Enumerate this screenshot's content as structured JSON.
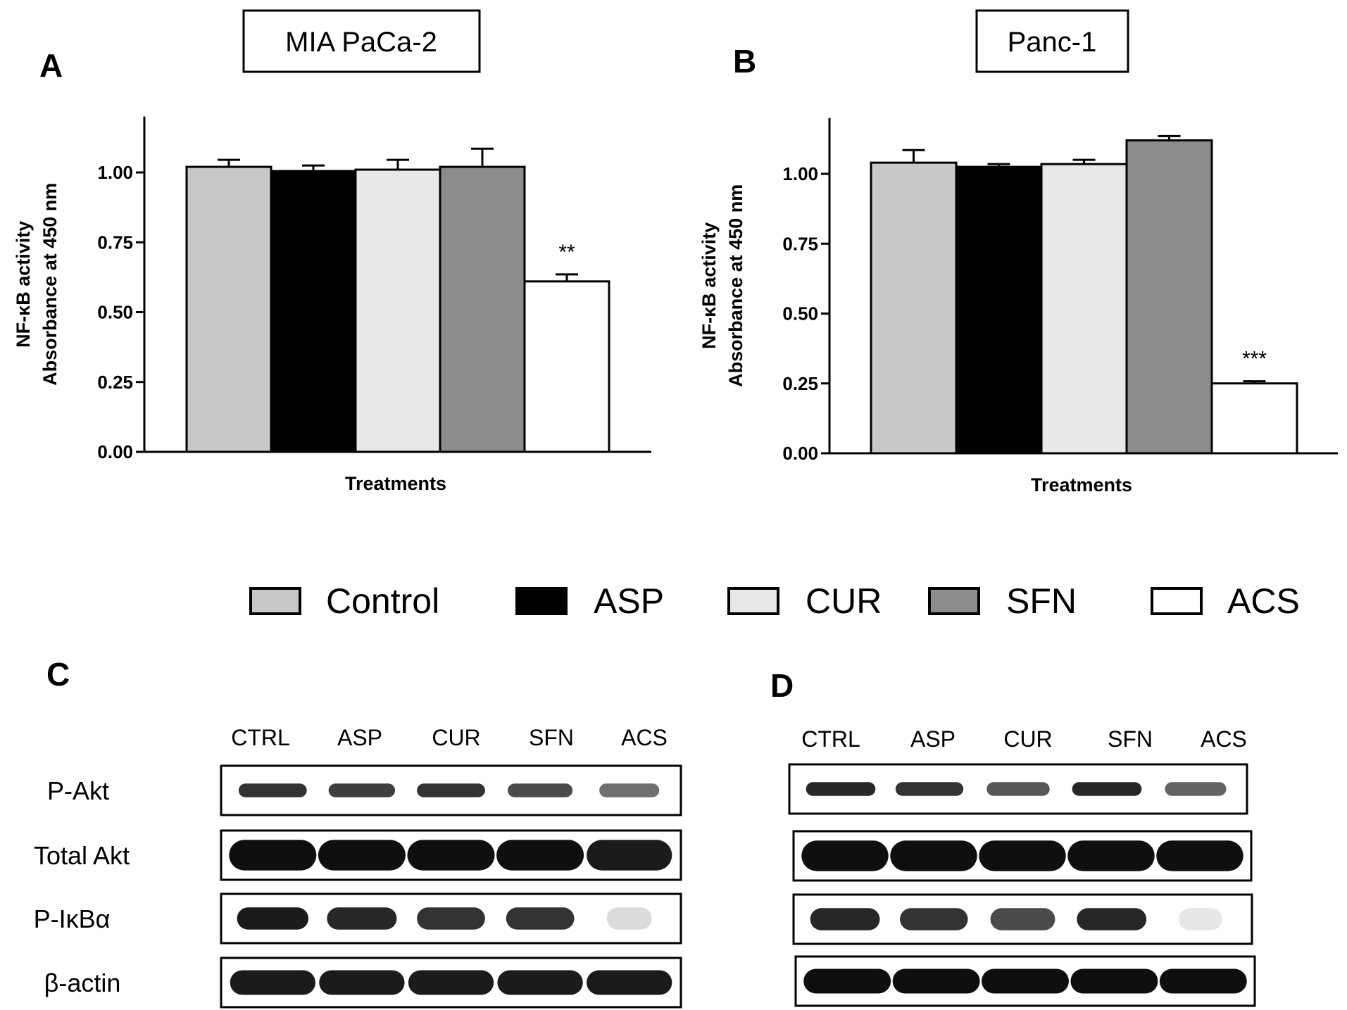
{
  "panels": {
    "A": {
      "letter": "A",
      "cell_line": "MIA PaCa-2"
    },
    "B": {
      "letter": "B",
      "cell_line": "Panc-1"
    },
    "C": {
      "letter": "C"
    },
    "D": {
      "letter": "D"
    }
  },
  "chart_data": [
    {
      "type": "bar",
      "panel": "A",
      "title": "MIA PaCa-2",
      "xlabel": "Treatments",
      "ylabel": [
        "NF-κB activity",
        "Absorbance at 450 nm"
      ],
      "ylim": [
        0,
        1.2
      ],
      "yticks": [
        0.0,
        0.25,
        0.5,
        0.75,
        1.0
      ],
      "ytick_labels": [
        "0.00",
        "0.25",
        "0.50",
        "0.75",
        "1.00"
      ],
      "categories": [
        "Control",
        "ASP",
        "CUR",
        "SFN",
        "ACS"
      ],
      "values": [
        1.02,
        1.005,
        1.01,
        1.02,
        0.61
      ],
      "errors": [
        0.025,
        0.02,
        0.035,
        0.065,
        0.025
      ],
      "annotations": [
        "",
        "",
        "",
        "",
        "**"
      ]
    },
    {
      "type": "bar",
      "panel": "B",
      "title": "Panc-1",
      "xlabel": "Treatments",
      "ylabel": [
        "NF-κB activity",
        "Absorbance at 450 nm"
      ],
      "ylim": [
        0,
        1.2
      ],
      "yticks": [
        0.0,
        0.25,
        0.5,
        0.75,
        1.0
      ],
      "ytick_labels": [
        "0.00",
        "0.25",
        "0.50",
        "0.75",
        "1.00"
      ],
      "categories": [
        "Control",
        "ASP",
        "CUR",
        "SFN",
        "ACS"
      ],
      "values": [
        1.04,
        1.025,
        1.035,
        1.12,
        0.25
      ],
      "errors": [
        0.045,
        0.01,
        0.015,
        0.015,
        0.008
      ],
      "annotations": [
        "",
        "",
        "",
        "",
        "***"
      ]
    }
  ],
  "legend": [
    {
      "label": "Control",
      "color": "#c8c8c8"
    },
    {
      "label": "ASP",
      "color": "#000000"
    },
    {
      "label": "CUR",
      "color": "#e8e8e8"
    },
    {
      "label": "SFN",
      "color": "#8c8c8c"
    },
    {
      "label": "ACS",
      "color": "#ffffff"
    }
  ],
  "blots": {
    "lanes": [
      "CTRL",
      "ASP",
      "CUR",
      "SFN",
      "ACS"
    ],
    "rows": [
      "P-Akt",
      "Total Akt",
      "P-IκBα",
      "β-actin"
    ],
    "C_intensity": [
      [
        0.85,
        0.8,
        0.85,
        0.75,
        0.6
      ],
      [
        1.0,
        1.0,
        1.0,
        1.0,
        0.95
      ],
      [
        0.95,
        0.9,
        0.85,
        0.85,
        0.15
      ],
      [
        0.95,
        0.95,
        0.95,
        0.95,
        0.95
      ]
    ],
    "D_intensity": [
      [
        0.9,
        0.85,
        0.7,
        0.9,
        0.65
      ],
      [
        1.0,
        1.0,
        1.0,
        1.0,
        1.0
      ],
      [
        0.9,
        0.85,
        0.75,
        0.9,
        0.1
      ],
      [
        1.0,
        1.0,
        1.0,
        1.0,
        1.0
      ]
    ]
  }
}
